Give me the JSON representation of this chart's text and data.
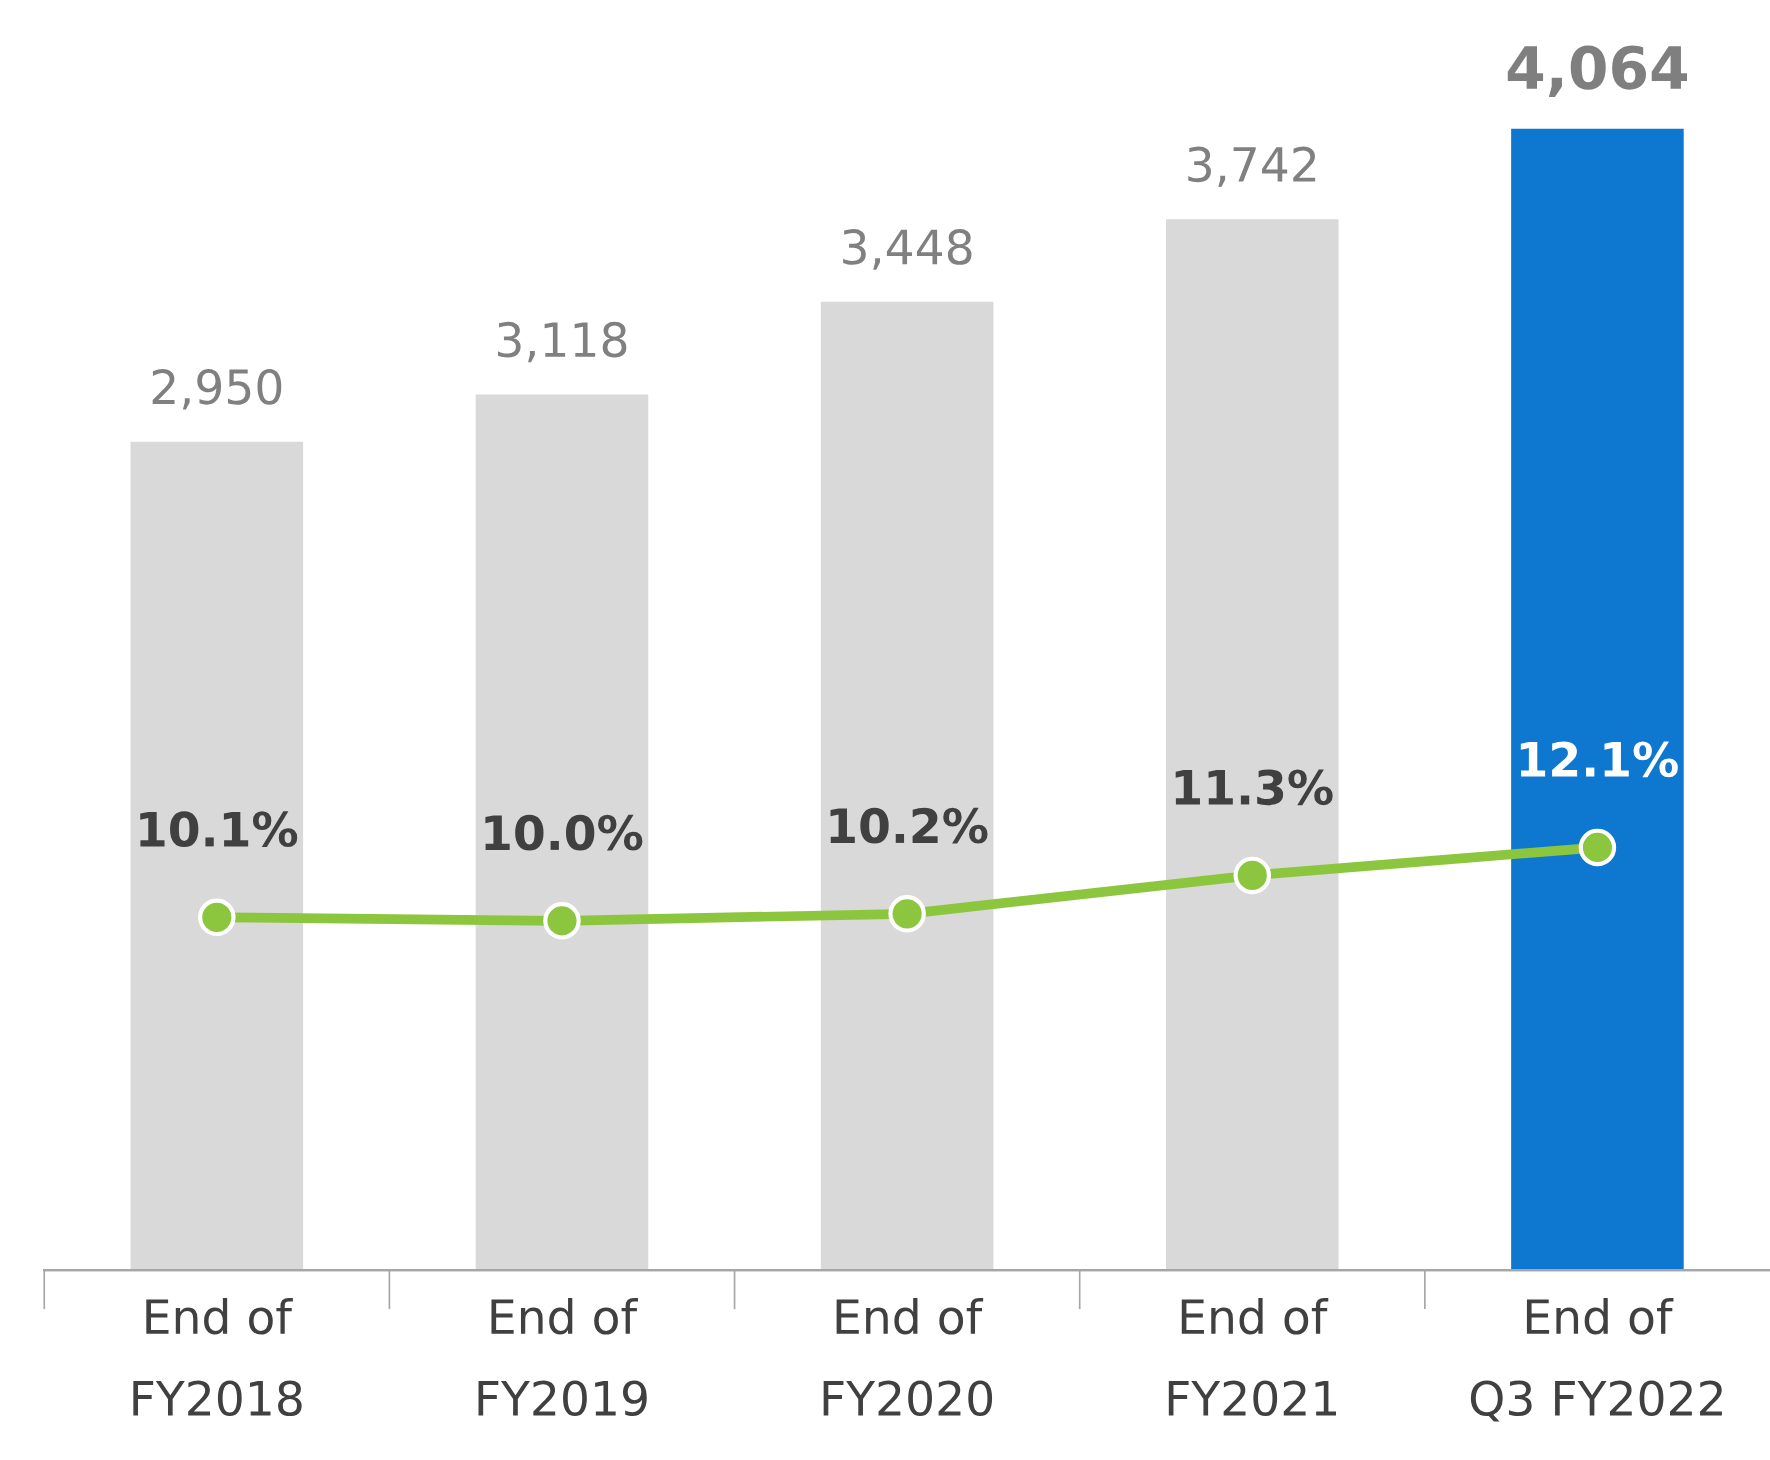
{
  "chart_data": {
    "type": "bar",
    "categories": [
      "End of\nFY2018",
      "End of\nFY2019",
      "End of\nFY2020",
      "End of\nFY2021",
      "End of\nQ3 FY2022"
    ],
    "series": [
      {
        "colors": [
          "#d9d9d9",
          "#d9d9d9",
          "#d9d9d9",
          "#d9d9d9",
          "#0e78d0"
        ],
        "values": [
          2950,
          3118,
          3448,
          3742,
          4064
        ],
        "value_labels": [
          "2,950",
          "3,118",
          "3,448",
          "3,742",
          "4,064"
        ]
      },
      {
        "type": "line",
        "axis": "y2",
        "color": "#8cc63f",
        "marker": "circle",
        "values": [
          10.1,
          10.0,
          10.2,
          11.3,
          12.1
        ],
        "value_labels": [
          "10.1%",
          "10.0%",
          "10.2%",
          "11.3%",
          "12.1%"
        ]
      }
    ],
    "grid": false,
    "legend": false
  }
}
